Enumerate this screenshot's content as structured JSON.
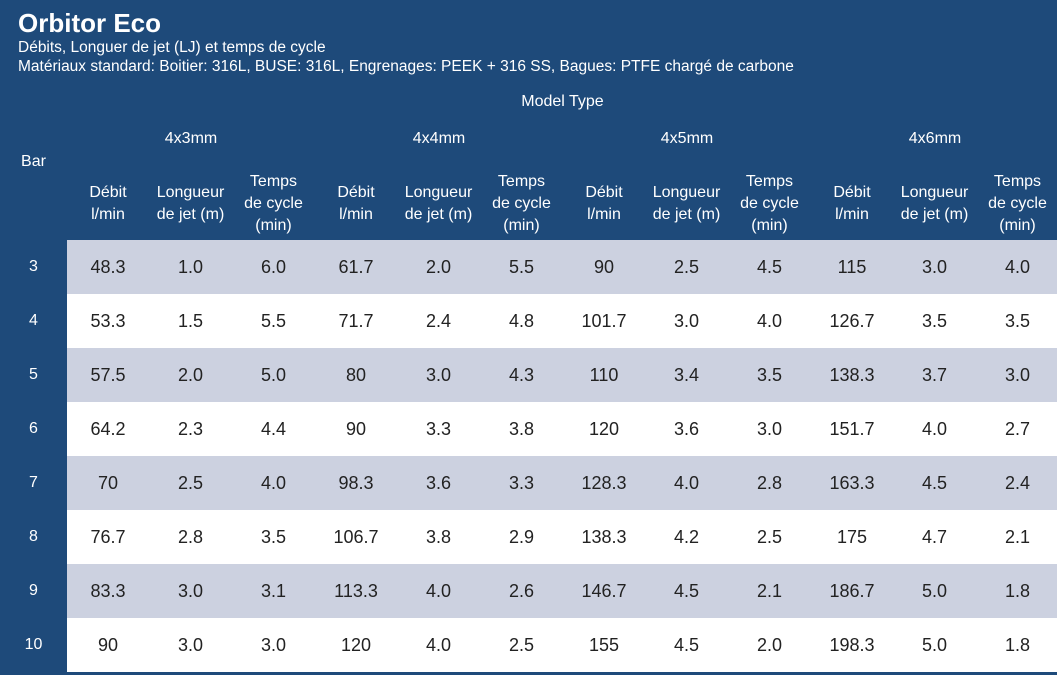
{
  "title": "Orbitor Eco",
  "subtitle_1": "Débits, Longuer de jet (LJ) et temps de cycle",
  "subtitle_2": "Matériaux standard: Boitier: 316L, BUSE: 316L, Engrenages: PEEK + 316 SS, Bagues: PTFE chargé de carbone",
  "model_type_label": "Model Type",
  "bar_label": "Bar",
  "groups": [
    "4x3mm",
    "4x4mm",
    "4x5mm",
    "4x6mm"
  ],
  "col_headers": {
    "debit": [
      "Débit",
      "l/min"
    ],
    "longueur": [
      "Longueur",
      "de jet (m)"
    ],
    "temps": [
      "Temps",
      "de cycle",
      "(min)"
    ]
  },
  "rows": [
    {
      "bar": "3",
      "values": [
        "48.3",
        "1.0",
        "6.0",
        "61.7",
        "2.0",
        "5.5",
        "90",
        "2.5",
        "4.5",
        "115",
        "3.0",
        "4.0"
      ]
    },
    {
      "bar": "4",
      "values": [
        "53.3",
        "1.5",
        "5.5",
        "71.7",
        "2.4",
        "4.8",
        "101.7",
        "3.0",
        "4.0",
        "126.7",
        "3.5",
        "3.5"
      ]
    },
    {
      "bar": "5",
      "values": [
        "57.5",
        "2.0",
        "5.0",
        "80",
        "3.0",
        "4.3",
        "110",
        "3.4",
        "3.5",
        "138.3",
        "3.7",
        "3.0"
      ]
    },
    {
      "bar": "6",
      "values": [
        "64.2",
        "2.3",
        "4.4",
        "90",
        "3.3",
        "3.8",
        "120",
        "3.6",
        "3.0",
        "151.7",
        "4.0",
        "2.7"
      ]
    },
    {
      "bar": "7",
      "values": [
        "70",
        "2.5",
        "4.0",
        "98.3",
        "3.6",
        "3.3",
        "128.3",
        "4.0",
        "2.8",
        "163.3",
        "4.5",
        "2.4"
      ]
    },
    {
      "bar": "8",
      "values": [
        "76.7",
        "2.8",
        "3.5",
        "106.7",
        "3.8",
        "2.9",
        "138.3",
        "4.2",
        "2.5",
        "175",
        "4.7",
        "2.1"
      ]
    },
    {
      "bar": "9",
      "values": [
        "83.3",
        "3.0",
        "3.1",
        "113.3",
        "4.0",
        "2.6",
        "146.7",
        "4.5",
        "2.1",
        "186.7",
        "5.0",
        "1.8"
      ]
    },
    {
      "bar": "10",
      "values": [
        "90",
        "3.0",
        "3.0",
        "120",
        "4.0",
        "2.5",
        "155",
        "4.5",
        "2.0",
        "198.3",
        "5.0",
        "1.8"
      ]
    }
  ],
  "colors": {
    "header_bg": "#1e4a7a",
    "row_alt": "#ccd1e0",
    "row_plain": "#ffffff"
  }
}
